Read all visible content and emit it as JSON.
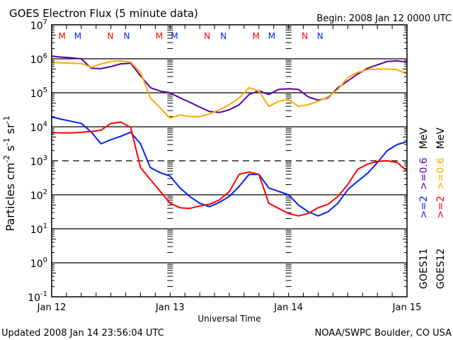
{
  "chart_data": {
    "type": "line",
    "title": "GOES Electron Flux (5 minute data)",
    "begin_label": "Begin: 2008 Jan 12 0000 UTC",
    "xlabel": "Universal Time",
    "ylabel_parts": [
      {
        "t": "Particles cm",
        "sup": "-2"
      },
      {
        "t": "s",
        "sup": "-1"
      },
      {
        "t": "sr",
        "sup": "-1"
      }
    ],
    "y_scale": "log",
    "ylim_log10": [
      -1,
      7
    ],
    "y_ticks": [
      {
        "base": "10",
        "exp": "7"
      },
      {
        "base": "10",
        "exp": "6"
      },
      {
        "base": "10",
        "exp": "5"
      },
      {
        "base": "10",
        "exp": "4"
      },
      {
        "base": "10",
        "exp": "3"
      },
      {
        "base": "10",
        "exp": "2"
      },
      {
        "base": "10",
        "exp": "1"
      },
      {
        "base": "10",
        "exp": "0"
      },
      {
        "base": "10",
        "exp": "-1"
      }
    ],
    "xlim_hours": [
      0,
      72
    ],
    "x_ticks": [
      {
        "label": "Jan 12",
        "hour": 0
      },
      {
        "label": "Jan 13",
        "hour": 24
      },
      {
        "label": "Jan 14",
        "hour": 48
      },
      {
        "label": "Jan 15",
        "hour": 72
      }
    ],
    "x_minor_tick_hours": 3,
    "grid": "horizontal lines at each decade; dashed at 10^3 threshold",
    "threshold_log10": 3,
    "x_hours": [
      0,
      2,
      4,
      6,
      8,
      10,
      12,
      14,
      16,
      18,
      20,
      22,
      24,
      26,
      28,
      30,
      32,
      34,
      36,
      38,
      40,
      42,
      44,
      46,
      48,
      50,
      52,
      54,
      56,
      58,
      60,
      62,
      64,
      66,
      68,
      70,
      72
    ],
    "series": [
      {
        "name": "GOES11 >=0.6 MeV",
        "color": "#5a00aa",
        "log10_values": [
          6.08,
          6.05,
          6.03,
          6.0,
          5.72,
          5.71,
          5.77,
          5.85,
          5.87,
          5.5,
          5.15,
          5.05,
          5.0,
          4.85,
          4.72,
          4.58,
          4.45,
          4.42,
          4.5,
          4.65,
          4.95,
          5.06,
          4.95,
          5.1,
          5.12,
          5.1,
          4.88,
          4.78,
          4.85,
          5.15,
          5.35,
          5.55,
          5.72,
          5.82,
          5.92,
          5.94,
          5.9
        ]
      },
      {
        "name": "GOES12 >=0.6 MeV",
        "color": "#ffaa00",
        "log10_values": [
          5.9,
          5.88,
          5.87,
          5.86,
          5.75,
          5.85,
          5.92,
          5.94,
          5.9,
          5.6,
          4.85,
          4.55,
          4.25,
          4.35,
          4.3,
          4.3,
          4.38,
          4.5,
          4.65,
          4.85,
          5.15,
          5.05,
          4.6,
          4.75,
          4.8,
          4.6,
          4.65,
          4.75,
          4.88,
          5.1,
          5.45,
          5.6,
          5.68,
          5.7,
          5.7,
          5.68,
          5.55
        ]
      },
      {
        "name": "GOES11 >=2 MeV",
        "color": "#0022ff",
        "log10_values": [
          4.29,
          4.22,
          4.16,
          4.1,
          3.85,
          3.5,
          3.62,
          3.72,
          3.84,
          3.5,
          2.8,
          2.65,
          2.55,
          2.2,
          1.95,
          1.75,
          1.65,
          1.78,
          1.95,
          2.25,
          2.6,
          2.6,
          2.2,
          2.1,
          2.0,
          1.7,
          1.5,
          1.38,
          1.5,
          1.75,
          2.15,
          2.4,
          2.63,
          2.95,
          3.3,
          3.48,
          3.56
        ]
      },
      {
        "name": "GOES12 >=2 MeV",
        "color": "#ff0000",
        "log10_values": [
          3.83,
          3.82,
          3.82,
          3.84,
          3.86,
          3.9,
          4.1,
          4.14,
          3.98,
          2.8,
          2.45,
          2.1,
          1.75,
          1.62,
          1.6,
          1.67,
          1.72,
          1.85,
          2.1,
          2.6,
          2.67,
          2.6,
          1.75,
          1.6,
          1.45,
          1.38,
          1.45,
          1.62,
          1.72,
          1.95,
          2.3,
          2.75,
          2.9,
          2.98,
          3.0,
          2.95,
          2.7
        ]
      }
    ],
    "markers": [
      {
        "label": "M",
        "hour": 2.1,
        "color": "#ff0000"
      },
      {
        "label": "M",
        "hour": 5.3,
        "color": "#0022ff"
      },
      {
        "label": "N",
        "hour": 11.9,
        "color": "#ff0000"
      },
      {
        "label": "N",
        "hour": 15.2,
        "color": "#0022ff"
      },
      {
        "label": "M",
        "hour": 21.8,
        "color": "#ff0000"
      },
      {
        "label": "M",
        "hour": 24.9,
        "color": "#0022ff"
      },
      {
        "label": "N",
        "hour": 31.5,
        "color": "#ff0000"
      },
      {
        "label": "N",
        "hour": 34.8,
        "color": "#0022ff"
      },
      {
        "label": "M",
        "hour": 41.4,
        "color": "#ff0000"
      },
      {
        "label": "M",
        "hour": 44.6,
        "color": "#0022ff"
      },
      {
        "label": "N",
        "hour": 51.3,
        "color": "#ff0000"
      },
      {
        "label": "N",
        "hour": 54.4,
        "color": "#0022ff"
      }
    ],
    "legend": {
      "placement": "right",
      "columns": [
        {
          "sat": "GOES11",
          "ch1": ">=2",
          "ch1_color": "#0022ff",
          "ch2": ">=0.6",
          "ch2_color": "#5a00aa",
          "unit": "MeV"
        },
        {
          "sat": "GOES12",
          "ch1": ">=2",
          "ch1_color": "#ff0000",
          "ch2": ">=0.6",
          "ch2_color": "#ffaa00",
          "unit": "MeV"
        }
      ]
    }
  },
  "footer": {
    "updated": "Updated 2008 Jan 14 23:56:04 UTC",
    "source": "NOAA/SWPC Boulder, CO USA"
  }
}
